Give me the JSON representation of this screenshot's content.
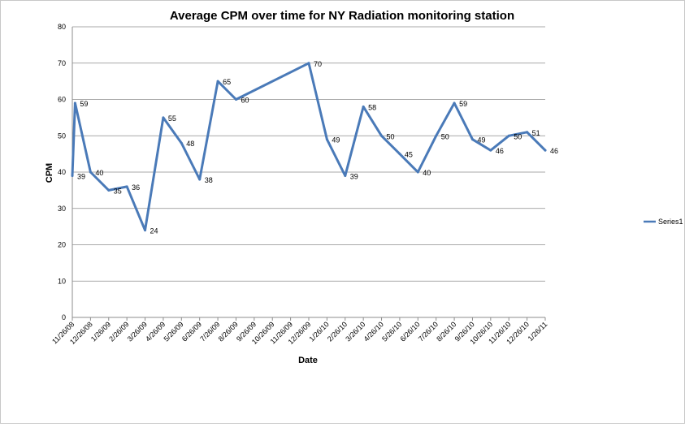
{
  "chart_data": {
    "type": "line",
    "title": "Average CPM over time for NY Radiation monitoring station",
    "xlabel": "Date",
    "ylabel": "CPM",
    "ylim": [
      0,
      80
    ],
    "yticks": [
      0,
      10,
      20,
      30,
      40,
      50,
      60,
      70,
      80
    ],
    "grid": true,
    "legend_position": "right",
    "categories": [
      "11/26/08",
      "12/26/08",
      "1/26/09",
      "2/26/09",
      "3/26/09",
      "4/26/09",
      "5/26/09",
      "6/26/09",
      "7/26/09",
      "8/26/09",
      "9/26/09",
      "10/26/09",
      "11/26/09",
      "12/26/09",
      "1/26/10",
      "2/26/10",
      "3/26/10",
      "4/26/10",
      "5/26/10",
      "6/26/10",
      "7/26/10",
      "8/26/10",
      "9/26/10",
      "10/26/10",
      "11/26/10",
      "12/26/10",
      "1/26/11"
    ],
    "series": [
      {
        "name": "Series1",
        "color": "#4a7ab8",
        "points": [
          {
            "t": 0.0,
            "value": 39
          },
          {
            "t": 0.15,
            "value": 59
          },
          {
            "t": 1.0,
            "value": 40
          },
          {
            "t": 2.0,
            "value": 35
          },
          {
            "t": 3.0,
            "value": 36
          },
          {
            "t": 4.0,
            "value": 24
          },
          {
            "t": 5.0,
            "value": 55
          },
          {
            "t": 6.0,
            "value": 48
          },
          {
            "t": 7.0,
            "value": 38
          },
          {
            "t": 8.0,
            "value": 65
          },
          {
            "t": 9.0,
            "value": 60
          },
          {
            "t": 13.0,
            "value": 70
          },
          {
            "t": 14.0,
            "value": 49
          },
          {
            "t": 15.0,
            "value": 39
          },
          {
            "t": 16.0,
            "value": 58
          },
          {
            "t": 17.0,
            "value": 50
          },
          {
            "t": 18.0,
            "value": 45
          },
          {
            "t": 19.0,
            "value": 40
          },
          {
            "t": 20.0,
            "value": 50
          },
          {
            "t": 21.0,
            "value": 59
          },
          {
            "t": 22.0,
            "value": 49
          },
          {
            "t": 23.0,
            "value": 46
          },
          {
            "t": 24.0,
            "value": 50
          },
          {
            "t": 25.0,
            "value": 51
          },
          {
            "t": 26.0,
            "value": 46
          }
        ]
      }
    ]
  }
}
